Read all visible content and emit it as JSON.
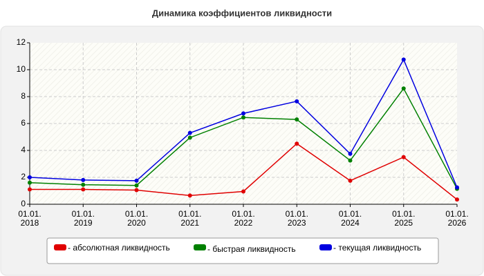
{
  "chart_data": {
    "type": "line",
    "title": "Динамика коэффициентов ликвидности",
    "categories": [
      "01.01.\n2018",
      "01.01.\n2019",
      "01.01.\n2020",
      "01.01.\n2021",
      "01.01.\n2022",
      "01.01.\n2023",
      "01.01.\n2024",
      "01.01.\n2025",
      "01.01.\n2026"
    ],
    "series": [
      {
        "name": "- абсолютная ликвидность",
        "color": "#e00000",
        "values": [
          1.1,
          1.1,
          1.05,
          0.65,
          0.95,
          4.5,
          1.75,
          3.5,
          0.35
        ]
      },
      {
        "name": "- быстрая ликвидность",
        "color": "#008000",
        "values": [
          1.6,
          1.45,
          1.4,
          4.95,
          6.45,
          6.3,
          3.25,
          8.6,
          1.15
        ]
      },
      {
        "name": "- текущая ликвидность",
        "color": "#0000e0",
        "values": [
          2.0,
          1.8,
          1.75,
          5.3,
          6.75,
          7.65,
          3.75,
          10.75,
          1.25
        ]
      }
    ],
    "ylim": [
      0,
      12
    ],
    "yticks": [
      0,
      2,
      4,
      6,
      8,
      10,
      12
    ],
    "grid": true,
    "legend": "bottom"
  }
}
